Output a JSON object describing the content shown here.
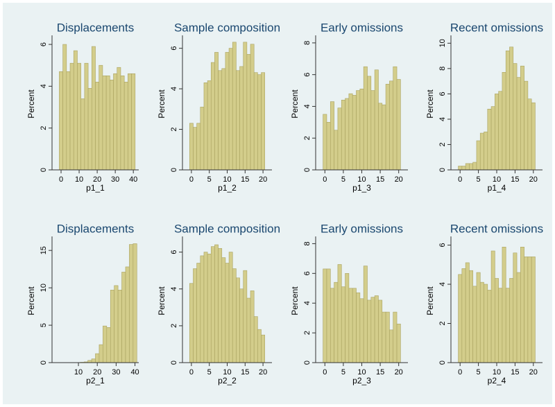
{
  "chart_data": [
    {
      "type": "histogram",
      "title": "Displacements",
      "xlabel": "p1_1",
      "ylabel": "Percent",
      "color": "#d3cd8b",
      "edgecolor": "#a9a25f",
      "bins": [
        -1,
        1,
        3,
        5,
        7,
        9,
        11,
        13,
        15,
        17,
        19,
        21,
        23,
        25,
        27,
        29,
        31,
        33,
        35,
        37,
        39,
        41
      ],
      "values": [
        4.7,
        6.0,
        4.7,
        5.1,
        5.7,
        5.1,
        3.4,
        5.1,
        3.9,
        5.9,
        4.2,
        5.0,
        4.5,
        4.5,
        4.3,
        4.6,
        4.9,
        4.5,
        4.2,
        4.6,
        4.6
      ],
      "xlim": [
        -5,
        43
      ],
      "xticks": [
        0,
        10,
        20,
        30,
        40
      ],
      "ylim": [
        0,
        6.3
      ],
      "yticks": [
        0,
        2,
        4,
        6
      ]
    },
    {
      "type": "histogram",
      "title": "Sample composition",
      "xlabel": "p1_2",
      "ylabel": "Percent",
      "color": "#d3cd8b",
      "edgecolor": "#a9a25f",
      "bins": [
        -0.5,
        0.5,
        1.5,
        2.5,
        3.5,
        4.5,
        5.5,
        6.5,
        7.5,
        8.5,
        9.5,
        10.5,
        11.5,
        12.5,
        13.5,
        14.5,
        15.5,
        16.5,
        17.5,
        18.5,
        19.5,
        20.5
      ],
      "values": [
        2.3,
        2.1,
        2.3,
        3.1,
        4.3,
        4.4,
        5.3,
        5.8,
        4.9,
        5.0,
        5.8,
        6.0,
        6.3,
        4.9,
        5.1,
        6.3,
        5.7,
        6.2,
        4.8,
        4.7,
        4.8
      ],
      "xlim": [
        -2.5,
        22.5
      ],
      "xticks": [
        0,
        5,
        10,
        15,
        20
      ],
      "ylim": [
        0,
        6.5
      ],
      "yticks": [
        0,
        2,
        4,
        6
      ]
    },
    {
      "type": "histogram",
      "title": "Early omissions",
      "xlabel": "p1_3",
      "ylabel": "Percent",
      "color": "#d3cd8b",
      "edgecolor": "#a9a25f",
      "bins": [
        -0.5,
        0.5,
        1.5,
        2.5,
        3.5,
        4.5,
        5.5,
        6.5,
        7.5,
        8.5,
        9.5,
        10.5,
        11.5,
        12.5,
        13.5,
        14.5,
        15.5,
        16.5,
        17.5,
        18.5,
        19.5,
        20.5
      ],
      "values": [
        3.5,
        3.0,
        4.3,
        2.5,
        3.9,
        4.4,
        4.5,
        4.8,
        4.7,
        5.0,
        5.1,
        6.5,
        5.9,
        5.0,
        6.3,
        4.2,
        4.1,
        5.4,
        5.6,
        6.5,
        5.7
      ],
      "xlim": [
        -2.5,
        22.5
      ],
      "xticks": [
        0,
        5,
        10,
        15,
        20
      ],
      "ylim": [
        0,
        8.3
      ],
      "yticks": [
        0,
        2,
        4,
        6,
        8
      ]
    },
    {
      "type": "histogram",
      "title": "Recent omissions",
      "xlabel": "p1_4",
      "ylabel": "Percent",
      "color": "#d3cd8b",
      "edgecolor": "#a9a25f",
      "bins": [
        -0.5,
        0.5,
        1.5,
        2.5,
        3.5,
        4.5,
        5.5,
        6.5,
        7.5,
        8.5,
        9.5,
        10.5,
        11.5,
        12.5,
        13.5,
        14.5,
        15.5,
        16.5,
        17.5,
        18.5,
        19.5,
        20.5
      ],
      "values": [
        0.3,
        0.3,
        0.5,
        0.5,
        0.6,
        2.3,
        2.9,
        3.0,
        4.8,
        5.0,
        6.0,
        6.2,
        7.7,
        9.4,
        9.7,
        8.4,
        7.3,
        8.2,
        7.0,
        5.6,
        5.3
      ],
      "xlim": [
        -2.5,
        22.5
      ],
      "xticks": [
        0,
        5,
        10,
        15,
        20
      ],
      "ylim": [
        0,
        10.4
      ],
      "yticks": [
        0,
        2,
        4,
        6,
        8,
        10
      ]
    },
    {
      "type": "histogram",
      "title": "Displacements",
      "xlabel": "p2_1",
      "ylabel": "Percent",
      "color": "#d3cd8b",
      "edgecolor": "#a9a25f",
      "bins": [
        9,
        11,
        13,
        15,
        17,
        19,
        21,
        23,
        25,
        27,
        29,
        31,
        33,
        35,
        37,
        39,
        41
      ],
      "values": [
        0,
        0.05,
        0.1,
        0.3,
        0.5,
        1.2,
        2.4,
        4.9,
        4.7,
        9.7,
        10.3,
        9.7,
        12.1,
        12.8,
        15.8,
        15.9
      ],
      "xlim": [
        -4,
        42
      ],
      "xticks": [
        10,
        20,
        30,
        40
      ],
      "ylim": [
        0,
        16.5
      ],
      "yticks": [
        0,
        5,
        10,
        15
      ]
    },
    {
      "type": "histogram",
      "title": "Sample composition",
      "xlabel": "p2_2",
      "ylabel": "Percent",
      "color": "#d3cd8b",
      "edgecolor": "#a9a25f",
      "bins": [
        -0.5,
        0.5,
        1.5,
        2.5,
        3.5,
        4.5,
        5.5,
        6.5,
        7.5,
        8.5,
        9.5,
        10.5,
        11.5,
        12.5,
        13.5,
        14.5,
        15.5,
        16.5,
        17.5,
        18.5,
        19.5,
        20.5
      ],
      "values": [
        4.3,
        5.1,
        5.4,
        5.8,
        6.0,
        5.9,
        6.3,
        6.4,
        6.2,
        5.7,
        5.4,
        6.0,
        5.1,
        4.6,
        4.0,
        5.0,
        3.5,
        3.9,
        2.5,
        1.8,
        1.5
      ],
      "xlim": [
        -2.5,
        22.5
      ],
      "xticks": [
        0,
        5,
        10,
        15,
        20
      ],
      "ylim": [
        0,
        6.7
      ],
      "yticks": [
        0,
        2,
        4,
        6
      ]
    },
    {
      "type": "histogram",
      "title": "Early omissions",
      "xlabel": "p2_3",
      "ylabel": "Percent",
      "color": "#d3cd8b",
      "edgecolor": "#a9a25f",
      "bins": [
        -0.5,
        0.5,
        1.5,
        2.5,
        3.5,
        4.5,
        5.5,
        6.5,
        7.5,
        8.5,
        9.5,
        10.5,
        11.5,
        12.5,
        13.5,
        14.5,
        15.5,
        16.5,
        17.5,
        18.5,
        19.5,
        20.5
      ],
      "values": [
        6.3,
        6.3,
        5.0,
        5.4,
        6.6,
        5.1,
        6.0,
        5.0,
        5.0,
        4.7,
        4.3,
        6.5,
        4.2,
        4.4,
        4.5,
        4.2,
        3.4,
        3.4,
        2.2,
        3.4,
        2.6
      ],
      "xlim": [
        -2.5,
        22.5
      ],
      "xticks": [
        0,
        5,
        10,
        15,
        20
      ],
      "ylim": [
        0,
        8.3
      ],
      "yticks": [
        0,
        2,
        4,
        6,
        8
      ]
    },
    {
      "type": "histogram",
      "title": "Recent omissions",
      "xlabel": "p2_4",
      "ylabel": "Percent",
      "color": "#d3cd8b",
      "edgecolor": "#a9a25f",
      "bins": [
        -0.5,
        0.5,
        1.5,
        2.5,
        3.5,
        4.5,
        5.5,
        6.5,
        7.5,
        8.5,
        9.5,
        10.5,
        11.5,
        12.5,
        13.5,
        14.5,
        15.5,
        16.5,
        17.5,
        18.5,
        19.5,
        20.5
      ],
      "values": [
        4.5,
        4.8,
        5.1,
        4.7,
        3.9,
        4.6,
        4.1,
        4.0,
        3.7,
        5.7,
        4.3,
        3.8,
        5.9,
        3.8,
        4.3,
        5.6,
        4.6,
        5.9,
        5.4,
        5.4,
        5.4
      ],
      "xlim": [
        -2.5,
        22.5
      ],
      "xticks": [
        0,
        5,
        10,
        15,
        20
      ],
      "ylim": [
        0,
        6.3
      ],
      "yticks": [
        0,
        2,
        4,
        6
      ]
    }
  ]
}
